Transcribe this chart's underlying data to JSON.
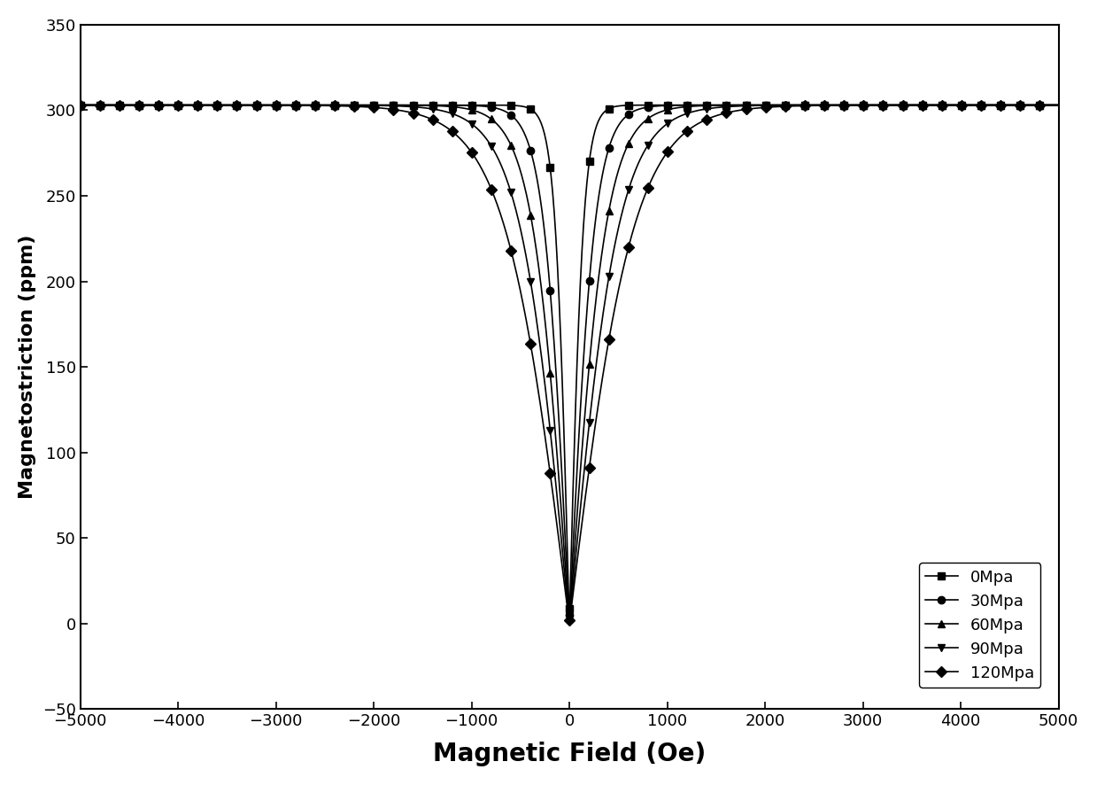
{
  "title": "",
  "xlabel": "Magnetic Field (Oe)",
  "ylabel": "Magnetostriction (ppm)",
  "xlim": [
    -5000,
    5000
  ],
  "ylim": [
    -50,
    350
  ],
  "xticks": [
    -5000,
    -4000,
    -3000,
    -2000,
    -1000,
    0,
    1000,
    2000,
    3000,
    4000,
    5000
  ],
  "yticks": [
    -50,
    0,
    50,
    100,
    150,
    200,
    250,
    300,
    350
  ],
  "series": [
    {
      "label": "0Mpa",
      "marker": "s",
      "saturation": 303,
      "knee": 500,
      "sharpness": 0.012
    },
    {
      "label": "30Mpa",
      "marker": "o",
      "saturation": 303,
      "knee": 900,
      "sharpness": 0.008
    },
    {
      "label": "60Mpa",
      "marker": "^",
      "saturation": 303,
      "knee": 1300,
      "sharpness": 0.006
    },
    {
      "label": "90Mpa",
      "marker": "v",
      "saturation": 303,
      "knee": 1750,
      "sharpness": 0.005
    },
    {
      "label": "120Mpa",
      "marker": "D",
      "saturation": 303,
      "knee": 2300,
      "sharpness": 0.004
    }
  ],
  "color": "black",
  "markersize": 6,
  "linewidth": 1.2,
  "background_color": "white",
  "xlabel_fontsize": 20,
  "ylabel_fontsize": 16,
  "tick_fontsize": 13,
  "legend_fontsize": 13,
  "n_points": 1200,
  "marker_density": 25
}
